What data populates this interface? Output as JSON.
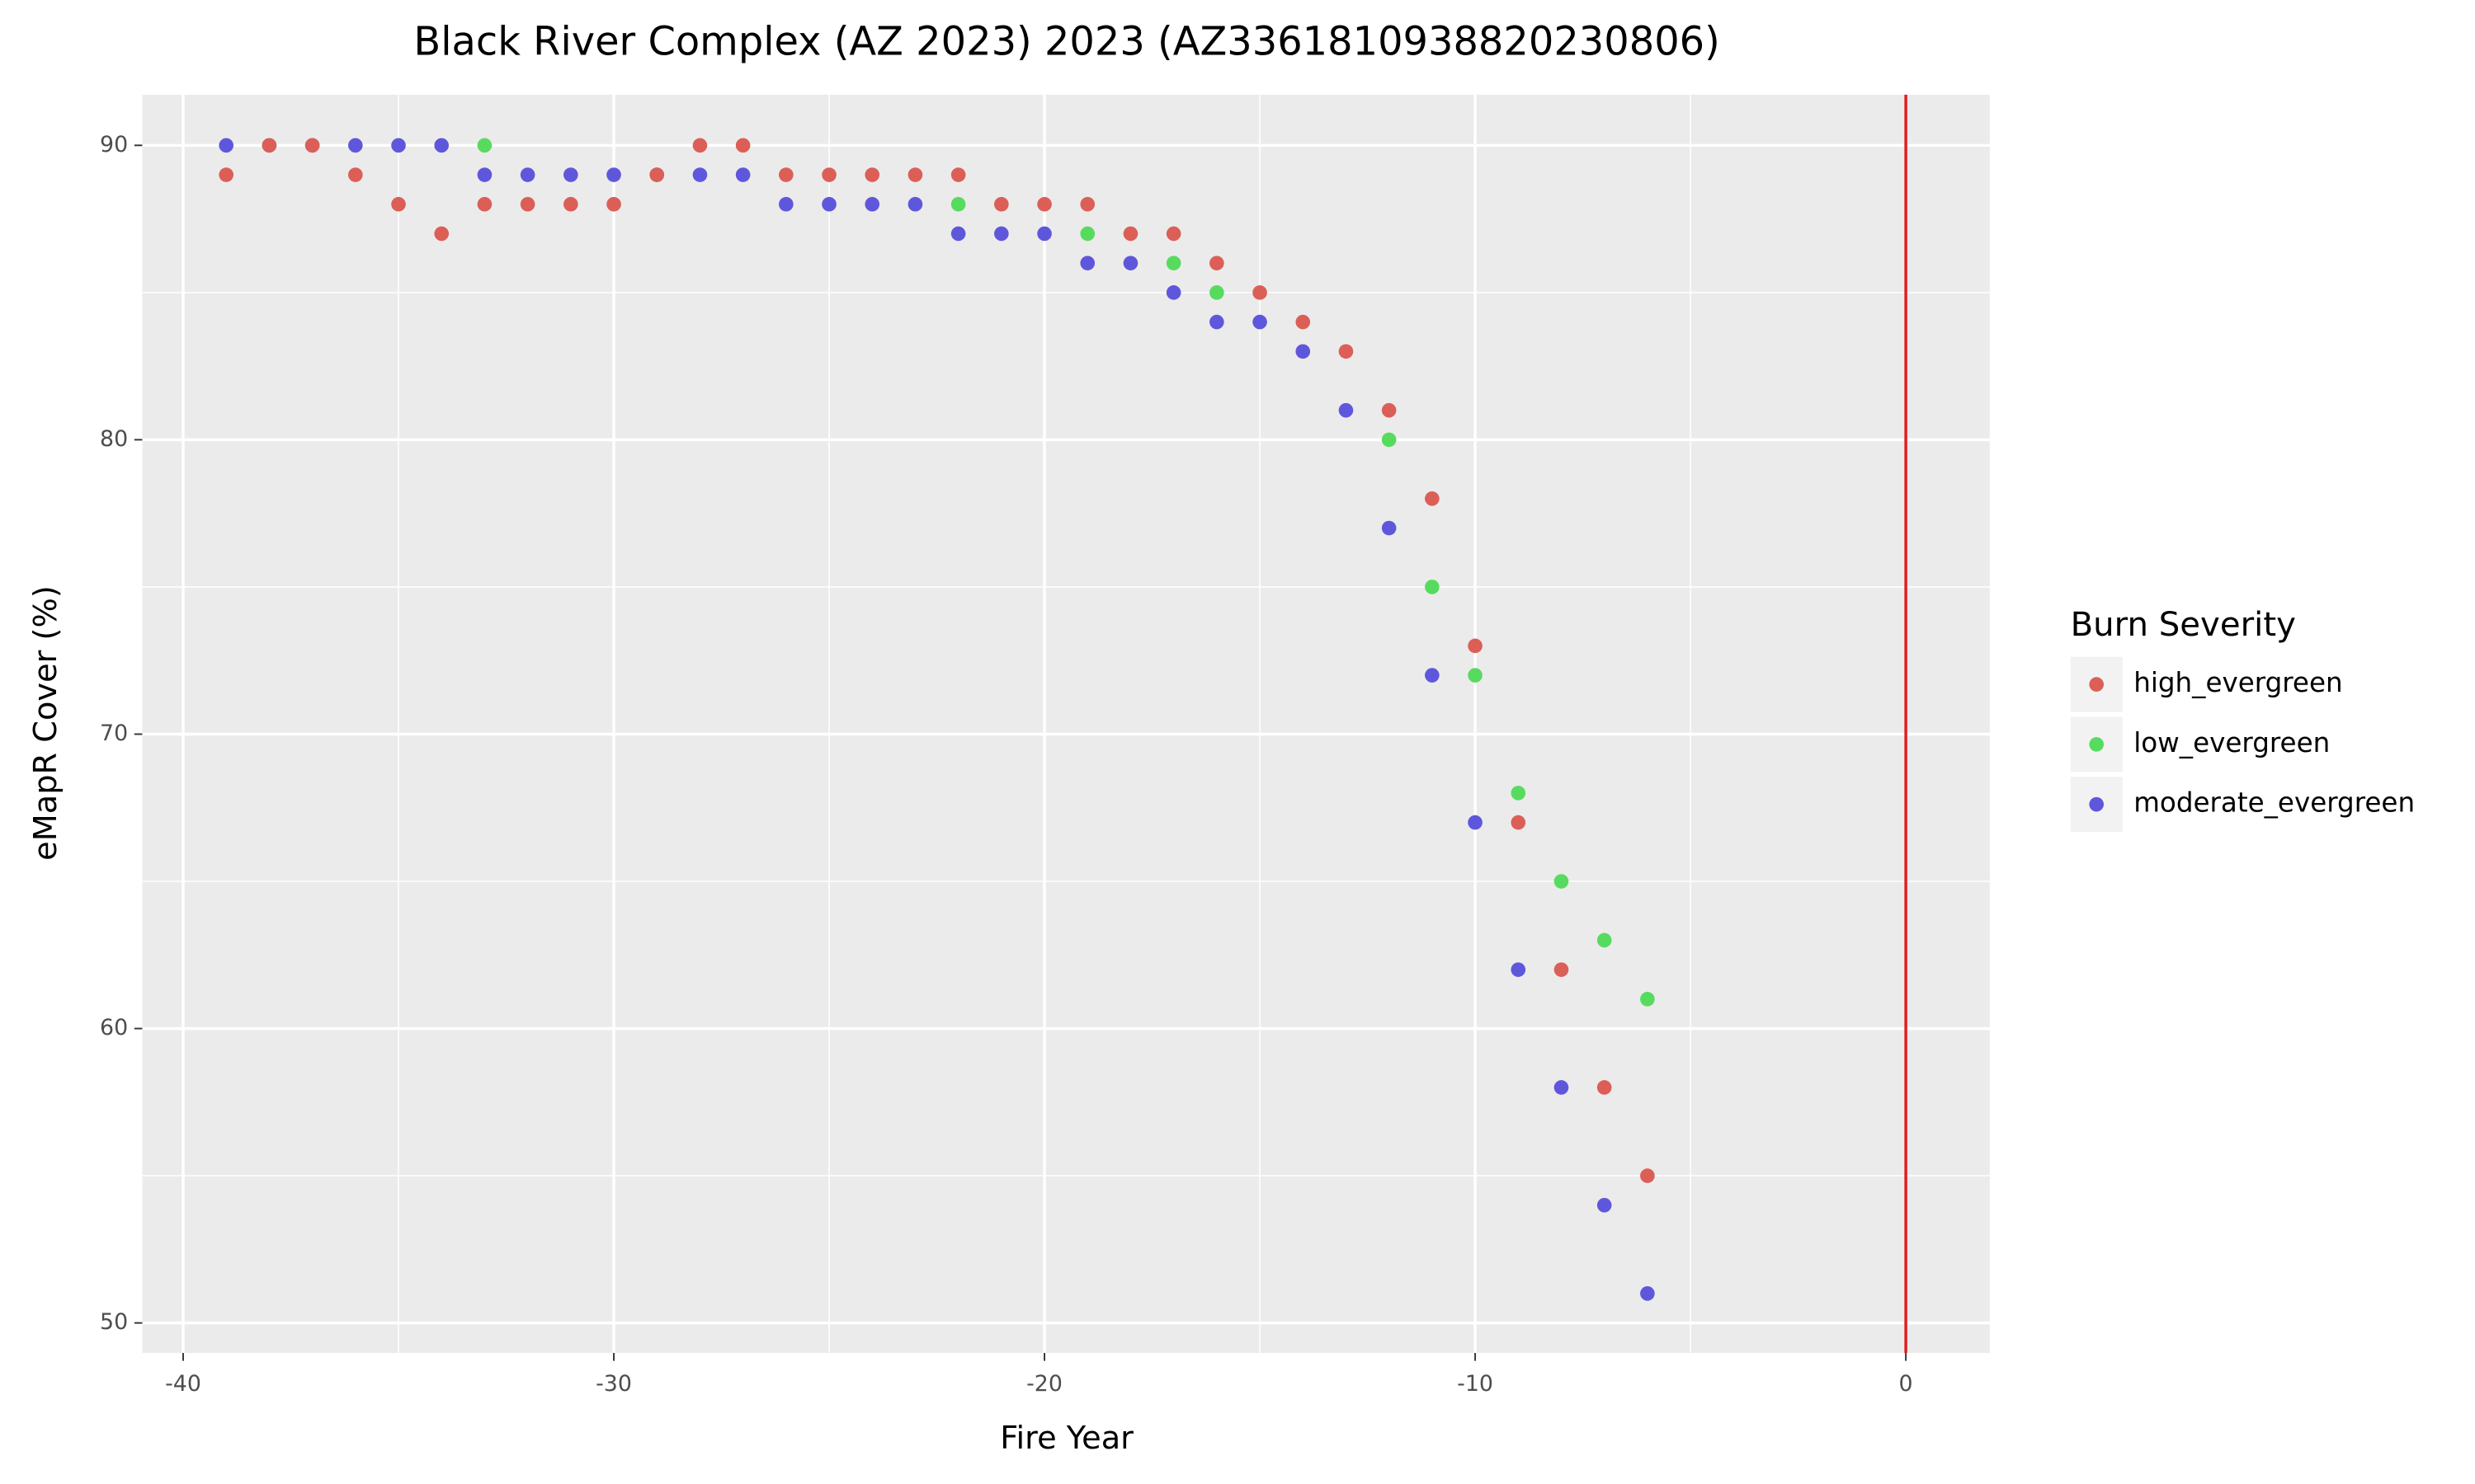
{
  "chart_data": {
    "type": "scatter",
    "title": "Black River Complex (AZ 2023) 2023 (AZ3361810938820230806)",
    "x_label": "Fire Year",
    "y_label": "eMapR Cover (%)",
    "legend_title": "Burn Severity",
    "legend_position": "right",
    "xlim": [
      -40.95,
      1.95
    ],
    "ylim": [
      48.98,
      91.72
    ],
    "xticks": [
      -40,
      -30,
      -20,
      -10,
      0
    ],
    "yticks": [
      50,
      60,
      70,
      80,
      90
    ],
    "x_minor_ticks": [
      -35,
      -25,
      -15,
      -5
    ],
    "y_minor_ticks": [
      55,
      65,
      75,
      85
    ],
    "grid": true,
    "vline": {
      "x": 0,
      "color": "#e41a1c"
    },
    "series": [
      {
        "name": "high_evergreen",
        "color": "#db5f57",
        "x": [
          -39,
          -38,
          -37,
          -36,
          -35,
          -34,
          -33,
          -32,
          -31,
          -30,
          -29,
          -28,
          -27,
          -26,
          -25,
          -24,
          -23,
          -22,
          -21,
          -20,
          -19,
          -18,
          -17,
          -16,
          -15,
          -14,
          -13,
          -12,
          -11,
          -10,
          -9,
          -8,
          -7,
          -6
        ],
        "values": [
          89,
          90,
          90,
          89,
          88,
          87,
          88,
          88,
          88,
          88,
          89,
          90,
          90,
          89,
          89,
          89,
          89,
          89,
          88,
          88,
          88,
          87,
          87,
          86,
          85,
          84,
          83,
          81,
          78,
          73,
          67,
          62,
          58,
          55
        ]
      },
      {
        "name": "low_evergreen",
        "color": "#57db5f",
        "x": [
          -33,
          -22,
          -19,
          -17,
          -16,
          -12,
          -11,
          -10,
          -9,
          -8,
          -7,
          -6
        ],
        "values": [
          90,
          88,
          87,
          86,
          85,
          80,
          75,
          72,
          68,
          65,
          63,
          61
        ]
      },
      {
        "name": "moderate_evergreen",
        "color": "#5f57db",
        "x": [
          -39,
          -38,
          -37,
          -36,
          -35,
          -34,
          -33,
          -32,
          -31,
          -30,
          -29,
          -28,
          -27,
          -26,
          -25,
          -24,
          -23,
          -22,
          -21,
          -20,
          -19,
          -18,
          -17,
          -16,
          -15,
          -14,
          -13,
          -12,
          -11,
          -10,
          -9,
          -8,
          -7,
          -6
        ],
        "values": [
          90,
          90,
          90,
          90,
          90,
          90,
          89,
          89,
          89,
          89,
          89,
          89,
          89,
          88,
          88,
          88,
          88,
          87,
          87,
          87,
          86,
          86,
          85,
          84,
          84,
          83,
          81,
          77,
          72,
          67,
          62,
          58,
          54,
          51
        ]
      }
    ]
  }
}
